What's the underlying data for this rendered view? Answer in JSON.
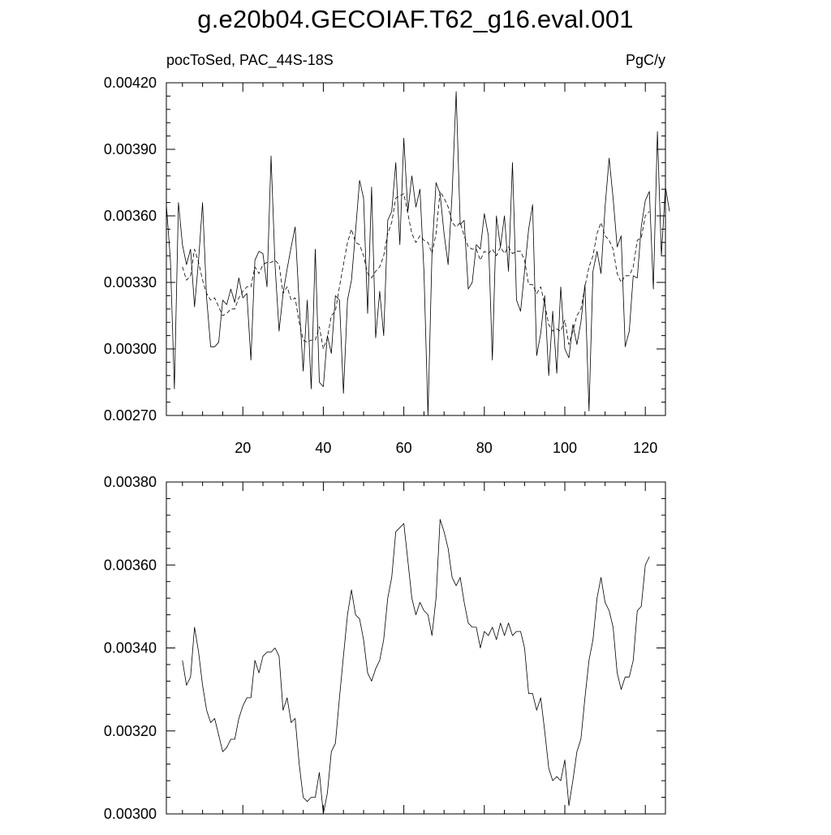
{
  "figure": {
    "title": "g.e20b04.GECOIAF.T62_g16.eval.001",
    "left_label": "pocToSed, PAC_44S-18S",
    "right_label": "PgC/y"
  },
  "chart_data": [
    {
      "type": "line",
      "xlim": [
        1,
        125
      ],
      "ylim": [
        0.0027,
        0.0042
      ],
      "x_ticks": [
        20,
        40,
        60,
        80,
        100,
        120
      ],
      "y_ticks": [
        0.0027,
        0.003,
        0.0033,
        0.0036,
        0.0039,
        0.0042
      ],
      "y_tick_labels": [
        "0.00270",
        "0.00300",
        "0.00330",
        "0.00360",
        "0.00390",
        "0.00420"
      ],
      "x_start": 1,
      "series": [
        {
          "style": "solid",
          "values": [
            0.00365,
            0.0034,
            0.00282,
            0.00366,
            0.00347,
            0.00338,
            0.00345,
            0.00319,
            0.0034,
            0.00366,
            0.00323,
            0.00301,
            0.00301,
            0.00303,
            0.00322,
            0.0032,
            0.00327,
            0.00321,
            0.00332,
            0.00323,
            0.00325,
            0.00295,
            0.0034,
            0.00344,
            0.00343,
            0.00328,
            0.00387,
            0.00338,
            0.00308,
            0.00325,
            0.00336,
            0.00346,
            0.00355,
            0.0032,
            0.0029,
            0.00322,
            0.00282,
            0.00345,
            0.00285,
            0.00283,
            0.00306,
            0.00298,
            0.00324,
            0.00322,
            0.0028,
            0.00322,
            0.00331,
            0.00353,
            0.00376,
            0.00368,
            0.00316,
            0.00373,
            0.00305,
            0.00326,
            0.00306,
            0.00358,
            0.00362,
            0.00384,
            0.00347,
            0.00395,
            0.00362,
            0.00378,
            0.00364,
            0.00372,
            0.00335,
            0.0027,
            0.00343,
            0.00375,
            0.0037,
            0.00352,
            0.00338,
            0.0037,
            0.00416,
            0.00356,
            0.00358,
            0.00327,
            0.0033,
            0.00347,
            0.00345,
            0.00361,
            0.00351,
            0.00295,
            0.0036,
            0.00346,
            0.0036,
            0.00335,
            0.00384,
            0.00322,
            0.00317,
            0.00335,
            0.00354,
            0.00365,
            0.00297,
            0.00307,
            0.00324,
            0.00288,
            0.00317,
            0.00289,
            0.00328,
            0.003,
            0.00296,
            0.00311,
            0.00302,
            0.00312,
            0.00329,
            0.00272,
            0.00335,
            0.00344,
            0.00334,
            0.00364,
            0.00386,
            0.00368,
            0.00346,
            0.00351,
            0.00301,
            0.00308,
            0.00333,
            0.00332,
            0.00355,
            0.00367,
            0.00371,
            0.00327,
            0.00398,
            0.00342,
            0.00373,
            0.00362
          ]
        },
        {
          "style": "dashed",
          "values": [
            null,
            null,
            null,
            null,
            0.00337,
            0.00331,
            0.00333,
            0.00345,
            0.00339,
            0.00331,
            0.00325,
            0.00322,
            0.00323,
            0.00319,
            0.00315,
            0.00316,
            0.00318,
            0.00318,
            0.00323,
            0.00326,
            0.00328,
            0.00328,
            0.00337,
            0.00334,
            0.00338,
            0.00339,
            0.00339,
            0.0034,
            0.00338,
            0.00325,
            0.00328,
            0.00322,
            0.00323,
            0.00312,
            0.00304,
            0.00303,
            0.00304,
            0.00304,
            0.0031,
            0.003,
            0.00305,
            0.00315,
            0.00317,
            0.00328,
            0.00338,
            0.00348,
            0.00354,
            0.00348,
            0.00347,
            0.00342,
            0.00334,
            0.00332,
            0.00335,
            0.00337,
            0.00342,
            0.00352,
            0.00357,
            0.00368,
            0.00369,
            0.0037,
            0.00361,
            0.00352,
            0.00348,
            0.00351,
            0.00349,
            0.00348,
            0.00343,
            0.00352,
            0.00371,
            0.00368,
            0.00364,
            0.00357,
            0.00355,
            0.00357,
            0.00351,
            0.00346,
            0.00345,
            0.00345,
            0.0034,
            0.00344,
            0.00343,
            0.00345,
            0.00342,
            0.00346,
            0.00343,
            0.00346,
            0.00343,
            0.00344,
            0.00344,
            0.0034,
            0.00329,
            0.00329,
            0.00325,
            0.00328,
            0.0032,
            0.00311,
            0.00308,
            0.00309,
            0.00308,
            0.00313,
            0.00302,
            0.00308,
            0.00315,
            0.00318,
            0.00328,
            0.00337,
            0.00342,
            0.00352,
            0.00357,
            0.00351,
            0.00349,
            0.00345,
            0.00334,
            0.0033,
            0.00333,
            0.00333,
            0.00337,
            0.00349,
            0.0035,
            0.0036,
            0.00362,
            null,
            null,
            null,
            null
          ]
        }
      ]
    },
    {
      "type": "line",
      "xlim": [
        1,
        125
      ],
      "ylim": [
        0.003,
        0.0038
      ],
      "x_ticks": [
        20,
        40,
        60,
        80,
        100,
        120
      ],
      "y_ticks": [
        0.003,
        0.0032,
        0.0034,
        0.0036,
        0.0038
      ],
      "y_tick_labels": [
        "0.00300",
        "0.00320",
        "0.00340",
        "0.00360",
        "0.00380"
      ],
      "x_start": 1,
      "series": [
        {
          "style": "solid",
          "values": [
            null,
            null,
            null,
            null,
            0.00337,
            0.00331,
            0.00333,
            0.00345,
            0.00339,
            0.00331,
            0.00325,
            0.00322,
            0.00323,
            0.00319,
            0.00315,
            0.00316,
            0.00318,
            0.00318,
            0.00323,
            0.00326,
            0.00328,
            0.00328,
            0.00337,
            0.00334,
            0.00338,
            0.00339,
            0.00339,
            0.0034,
            0.00338,
            0.00325,
            0.00328,
            0.00322,
            0.00323,
            0.00312,
            0.00304,
            0.00303,
            0.00304,
            0.00304,
            0.0031,
            0.003,
            0.00305,
            0.00315,
            0.00317,
            0.00328,
            0.00338,
            0.00348,
            0.00354,
            0.00348,
            0.00347,
            0.00342,
            0.00334,
            0.00332,
            0.00335,
            0.00337,
            0.00342,
            0.00352,
            0.00357,
            0.00368,
            0.00369,
            0.0037,
            0.00361,
            0.00352,
            0.00348,
            0.00351,
            0.00349,
            0.00348,
            0.00343,
            0.00352,
            0.00371,
            0.00368,
            0.00364,
            0.00357,
            0.00355,
            0.00357,
            0.00351,
            0.00346,
            0.00345,
            0.00345,
            0.0034,
            0.00344,
            0.00343,
            0.00345,
            0.00342,
            0.00346,
            0.00343,
            0.00346,
            0.00343,
            0.00344,
            0.00344,
            0.0034,
            0.00329,
            0.00329,
            0.00325,
            0.00328,
            0.0032,
            0.00311,
            0.00308,
            0.00309,
            0.00308,
            0.00313,
            0.00302,
            0.00308,
            0.00315,
            0.00318,
            0.00328,
            0.00337,
            0.00342,
            0.00352,
            0.00357,
            0.00351,
            0.00349,
            0.00345,
            0.00334,
            0.0033,
            0.00333,
            0.00333,
            0.00337,
            0.00349,
            0.0035,
            0.0036,
            0.00362,
            null,
            null,
            null,
            null
          ]
        }
      ]
    }
  ]
}
